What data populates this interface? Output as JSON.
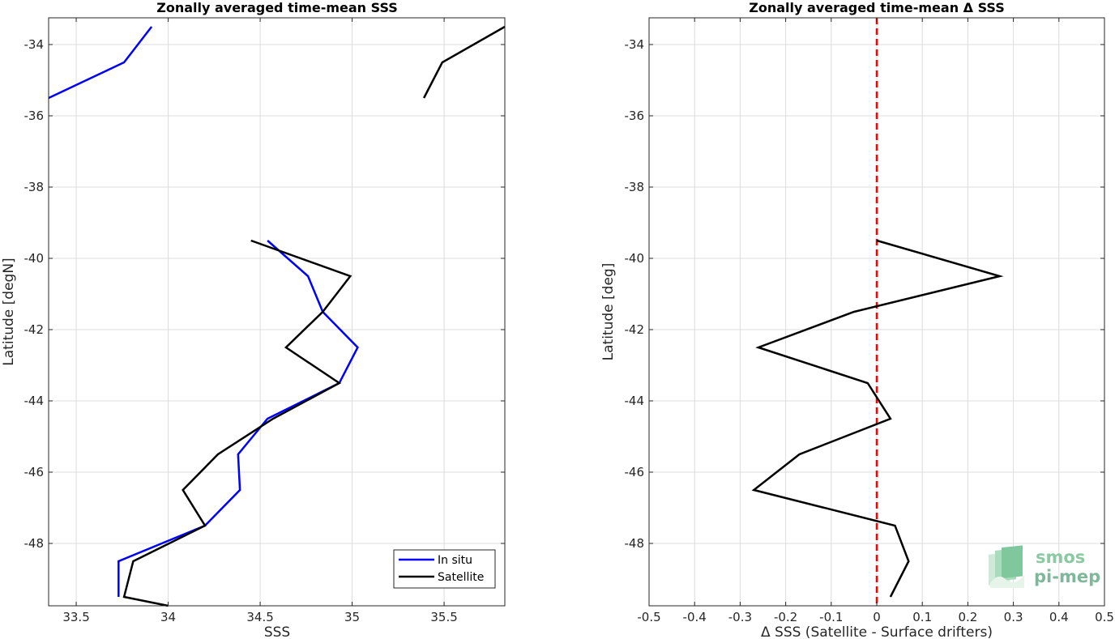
{
  "figure": {
    "logo": {
      "line1": "smos",
      "line2": "pi-mep"
    }
  },
  "chart_data": [
    {
      "type": "line",
      "title": "Zonally averaged time-mean SSS",
      "xlabel": "SSS",
      "ylabel": "Latitude [degN]",
      "xlim": [
        33.35,
        35.83
      ],
      "ylim": [
        -49.75,
        -33.25
      ],
      "xticks": [
        33.5,
        34,
        34.5,
        35,
        35.5
      ],
      "yticks": [
        -34,
        -36,
        -38,
        -40,
        -42,
        -44,
        -46,
        -48
      ],
      "grid": true,
      "legend": {
        "location": "bottom-right",
        "entries": [
          "In situ",
          "Satellite"
        ]
      },
      "series": [
        {
          "name": "In situ",
          "color": "#0000ff",
          "segments": [
            {
              "x": [
                33.91,
                33.76,
                33.35
              ],
              "y": [
                -33.5,
                -34.5,
                -35.5
              ]
            },
            {
              "x": [
                34.54,
                34.76,
                34.84,
                35.03,
                34.93,
                34.54,
                34.38,
                34.39,
                34.2,
                33.73,
                33.73
              ],
              "y": [
                -39.5,
                -40.5,
                -41.5,
                -42.5,
                -43.5,
                -44.5,
                -45.5,
                -46.5,
                -47.5,
                -48.5,
                -49.5
              ]
            }
          ]
        },
        {
          "name": "Satellite",
          "color": "#000000",
          "segments": [
            {
              "x": [
                35.83,
                35.49,
                35.39
              ],
              "y": [
                -33.5,
                -34.5,
                -35.5
              ]
            },
            {
              "x": [
                34.45,
                34.99,
                34.84,
                34.64,
                34.93,
                34.57,
                34.27,
                34.08,
                34.2,
                33.81,
                33.76,
                34.0
              ],
              "y": [
                -39.5,
                -40.5,
                -41.5,
                -42.5,
                -43.5,
                -44.5,
                -45.5,
                -46.5,
                -47.5,
                -48.5,
                -49.5,
                -49.75
              ]
            }
          ]
        }
      ]
    },
    {
      "type": "line",
      "title": "Zonally averaged time-mean Δ SSS",
      "xlabel": "Δ SSS (Satellite - Surface drifters)",
      "ylabel": "Latitude [deg]",
      "xlim": [
        -0.5,
        0.5
      ],
      "ylim": [
        -49.75,
        -33.25
      ],
      "xticks": [
        -0.5,
        -0.4,
        -0.3,
        -0.2,
        -0.1,
        0,
        0.1,
        0.2,
        0.3,
        0.4,
        0.5
      ],
      "yticks": [
        -34,
        -36,
        -38,
        -40,
        -42,
        -44,
        -46,
        -48
      ],
      "grid": true,
      "reference_line": {
        "x": 0,
        "color": "#ff0000",
        "style": "dashed"
      },
      "series": [
        {
          "color": "#000000",
          "segments": [
            {
              "x": [
                0.0,
                0.27,
                -0.05,
                -0.26,
                -0.02,
                0.03,
                -0.17,
                -0.27,
                0.04,
                0.07,
                0.03
              ],
              "y": [
                -39.5,
                -40.5,
                -41.5,
                -42.5,
                -43.5,
                -44.5,
                -45.5,
                -46.5,
                -47.5,
                -48.5,
                -49.5
              ]
            }
          ]
        }
      ]
    }
  ]
}
